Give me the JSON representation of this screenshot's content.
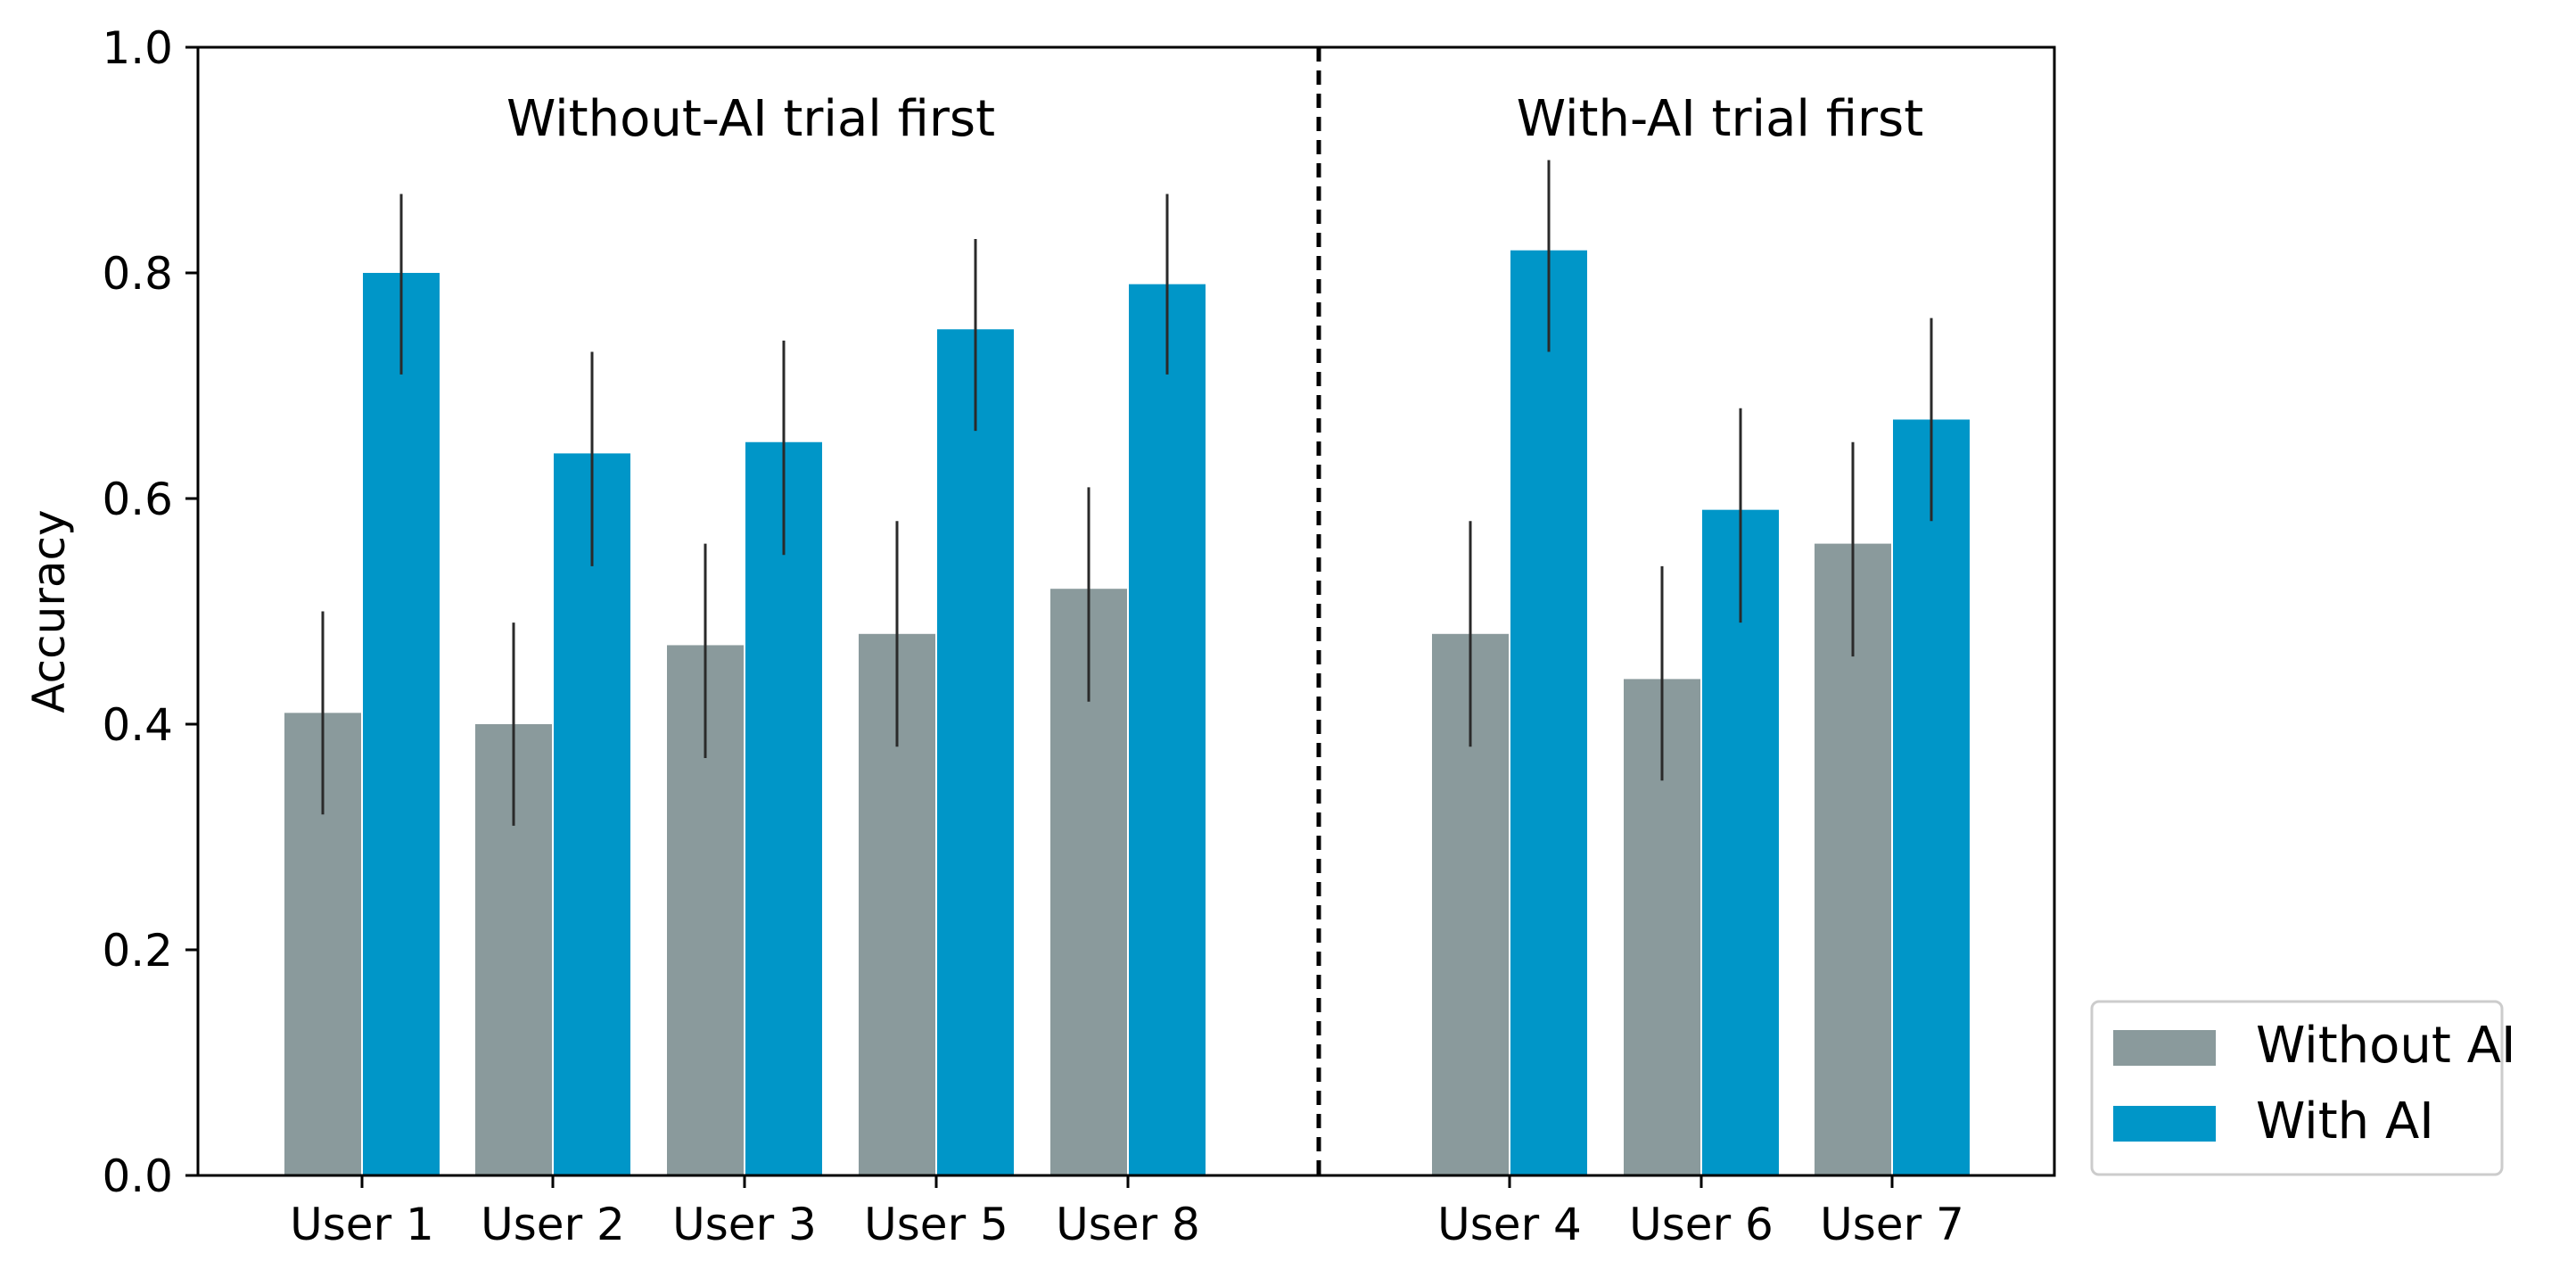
{
  "chart_data": {
    "type": "bar",
    "ylabel": "Accuracy",
    "xlabel": "",
    "ylim": [
      0,
      1.0
    ],
    "yticks": [
      "0.0",
      "0.2",
      "0.4",
      "0.6",
      "0.8",
      "1.0"
    ],
    "grid": false,
    "legend_position": "outside-bottom-right",
    "groups": [
      {
        "label": "Without-AI trial first",
        "categories": [
          "User 1",
          "User 2",
          "User 3",
          "User 5",
          "User 8"
        ]
      },
      {
        "label": "With-AI trial first",
        "categories": [
          "User 4",
          "User 6",
          "User 7"
        ]
      }
    ],
    "categories": [
      "User 1",
      "User 2",
      "User 3",
      "User 5",
      "User 8",
      "User 4",
      "User 6",
      "User 7"
    ],
    "series": [
      {
        "name": "Without AI",
        "color": "#8a9a9c",
        "values": [
          0.41,
          0.4,
          0.47,
          0.48,
          0.52,
          0.48,
          0.44,
          0.56
        ],
        "error_low": [
          0.32,
          0.31,
          0.37,
          0.38,
          0.42,
          0.38,
          0.35,
          0.46
        ],
        "error_high": [
          0.5,
          0.49,
          0.56,
          0.58,
          0.61,
          0.58,
          0.54,
          0.65
        ]
      },
      {
        "name": "With AI",
        "color": "#0096c8",
        "values": [
          0.8,
          0.64,
          0.65,
          0.75,
          0.79,
          0.82,
          0.59,
          0.67
        ],
        "error_low": [
          0.71,
          0.54,
          0.55,
          0.66,
          0.71,
          0.73,
          0.49,
          0.58
        ],
        "error_high": [
          0.87,
          0.73,
          0.74,
          0.83,
          0.87,
          0.9,
          0.68,
          0.76
        ]
      }
    ]
  }
}
